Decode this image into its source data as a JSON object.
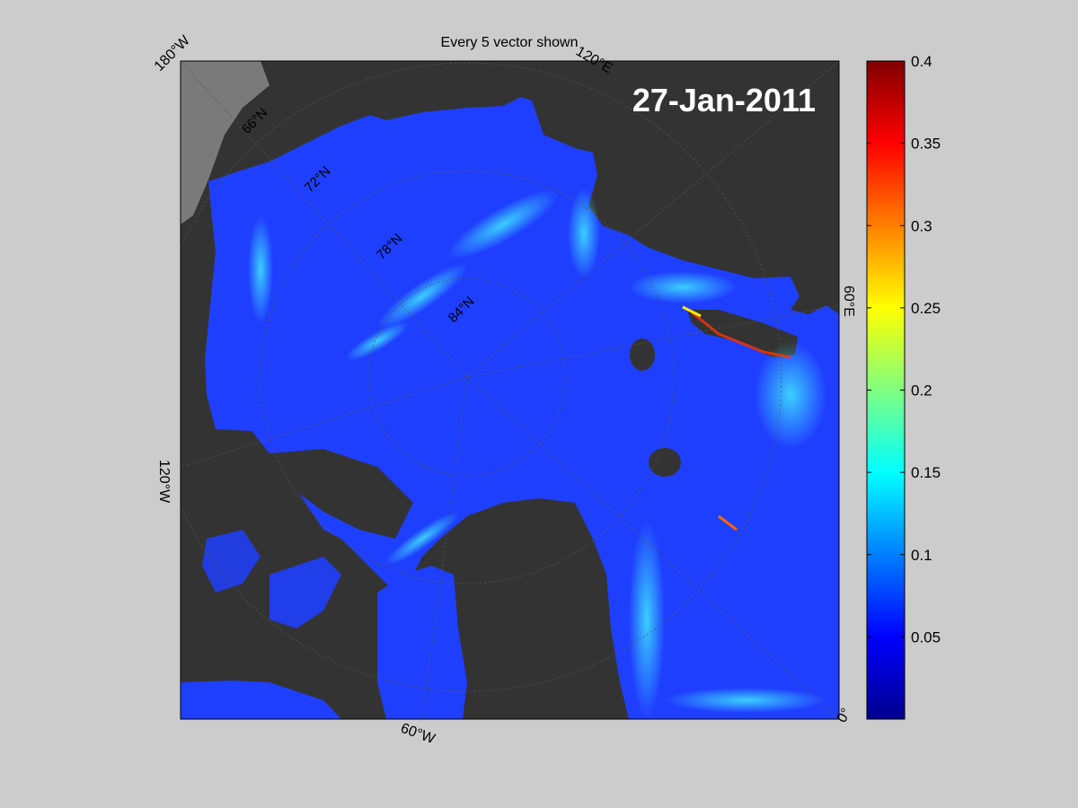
{
  "title": "Every 5 vector shown",
  "date_label": "27-Jan-2011",
  "graticule_labels": {
    "lon_180W": "180°W",
    "lon_120E": "120°E",
    "lon_60E": "60°E",
    "lon_120W": "120°W",
    "lon_60W": "60°W",
    "lon_0": "0°",
    "lat_66N": "66°N",
    "lat_72N": "72°N",
    "lat_78N": "78°N",
    "lat_84N": "84°N"
  },
  "colorbar": {
    "min": 0,
    "max": 0.4,
    "ticks": [
      "0.4",
      "0.35",
      "0.3",
      "0.25",
      "0.2",
      "0.15",
      "0.1",
      "0.05"
    ],
    "colormap": "jet"
  },
  "colors": {
    "background": "#cccccc",
    "land": "#333333",
    "land_edge": "#888888",
    "ocean_base": "#1f3fff",
    "vector": "#ffffff"
  }
}
